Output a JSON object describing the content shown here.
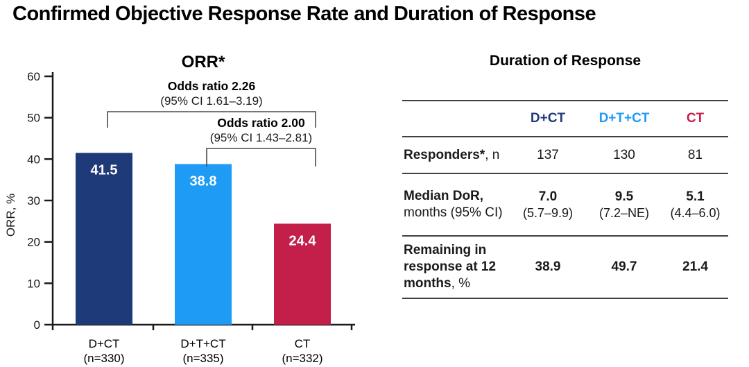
{
  "page": {
    "title": "Confirmed Objective Response Rate and Duration of Response"
  },
  "colors": {
    "d_ct": "#1f3a78",
    "d_t_ct": "#1e9bf4",
    "ct": "#c41e4a",
    "axis": "#1a1a1a",
    "rule": "#404040"
  },
  "chart_data": [
    {
      "type": "bar",
      "title": "ORR*",
      "ylabel": "ORR, %",
      "ylim": [
        0,
        60
      ],
      "yticks": [
        0,
        10,
        20,
        30,
        40,
        50,
        60
      ],
      "grid": false,
      "categories": [
        "D+CT",
        "D+T+CT",
        "CT"
      ],
      "category_sublabels": [
        "(n=330)",
        "(n=335)",
        "(n=332)"
      ],
      "values": [
        41.5,
        38.8,
        24.4
      ],
      "bar_colors": [
        "#1f3a78",
        "#1e9bf4",
        "#c41e4a"
      ],
      "value_label_color": "#ffffff",
      "annotations": [
        {
          "text": "Odds ratio 2.26",
          "ci": "(95% CI 1.61–3.19)",
          "from": 0,
          "to": 2
        },
        {
          "text": "Odds ratio 2.00",
          "ci": "(95% CI 1.43–2.81)",
          "from": 1,
          "to": 2
        }
      ]
    },
    {
      "type": "table",
      "title": "Duration of Response",
      "columns": [
        {
          "label": "D+CT",
          "color": "#1f3a78"
        },
        {
          "label": "D+T+CT",
          "color": "#1e9bf4"
        },
        {
          "label": "CT",
          "color": "#c41e4a"
        }
      ],
      "rows": [
        {
          "label_bold": "Responders*",
          "label_rest": ", n",
          "values": [
            "137",
            "130",
            "81"
          ]
        },
        {
          "label_bold": "Median DoR,",
          "label_rest": "months (95% CI)",
          "values": [
            "7.0",
            "9.5",
            "5.1"
          ],
          "ci": [
            "(5.7–9.9)",
            "(7.2–NE)",
            "(4.4–6.0)"
          ]
        },
        {
          "label_bold": "Remaining in response at 12 months",
          "label_rest": ", %",
          "values": [
            "38.9",
            "49.7",
            "21.4"
          ]
        }
      ]
    }
  ]
}
